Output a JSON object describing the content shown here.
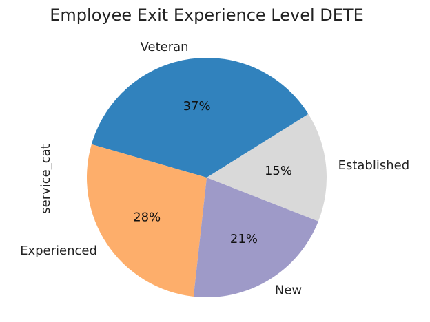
{
  "chart_data": {
    "type": "pie",
    "title": "Employee Exit Experience Level DETE",
    "ylabel": "service_cat",
    "slices": [
      {
        "label": "Veteran",
        "percent_label": "37%",
        "value": 37,
        "color": "#3182bd"
      },
      {
        "label": "Experienced",
        "percent_label": "28%",
        "value": 28,
        "color": "#fdae6b"
      },
      {
        "label": "New",
        "percent_label": "21%",
        "value": 21,
        "color": "#9e9ac8"
      },
      {
        "label": "Established",
        "percent_label": "15%",
        "value": 15,
        "color": "#d9d9d9"
      }
    ]
  }
}
